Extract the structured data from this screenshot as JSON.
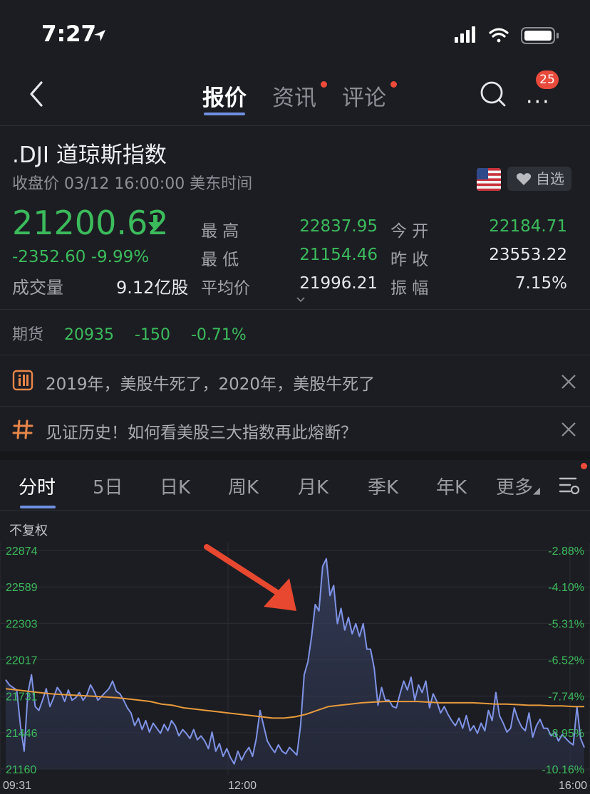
{
  "status_bar": {
    "time": "7:27"
  },
  "nav": {
    "tabs": [
      {
        "label": "报价",
        "active": true
      },
      {
        "label": "资讯",
        "has_dot": true
      },
      {
        "label": "评论",
        "has_dot": true
      }
    ],
    "notification_count": "25",
    "back_icon": "chevron-left-icon",
    "search_icon": "search-icon",
    "more_icon": "more-icon"
  },
  "stock": {
    "title": ".DJI  道琼斯指数",
    "subtitle": "收盘价 03/12 16:00:00 美东时间",
    "watch_label": "自选",
    "price": "21200.62",
    "change": "-2352.60  -9.99%",
    "volume_label": "成交量",
    "volume_value": "9.12亿股",
    "stats": [
      {
        "label": "最  高",
        "value": "22837.95",
        "color": "#3bbb5c"
      },
      {
        "label": "最  低",
        "value": "21154.46",
        "color": "#3bbb5c"
      },
      {
        "label": "平均价",
        "value": "21996.21",
        "color": "#e6e7eb"
      },
      {
        "label": "今  开",
        "value": "22184.71",
        "color": "#3bbb5c"
      },
      {
        "label": "昨  收",
        "value": "23553.22",
        "color": "#e6e7eb"
      },
      {
        "label": "振  幅",
        "value": "7.15%",
        "color": "#e6e7eb"
      }
    ]
  },
  "futures": {
    "label": "期货",
    "price": "20935",
    "change": "-150",
    "percent": "-0.71%"
  },
  "news": [
    {
      "icon": "info-icon",
      "text": "2019年，美股牛死了，2020年，美股牛死了"
    },
    {
      "icon": "hashtag-icon",
      "text": "见证历史！如何看美股三大指数再此熔断？"
    }
  ],
  "period_tabs": [
    "分时",
    "5日",
    "日K",
    "周K",
    "月K",
    "季K",
    "年K",
    "更多"
  ],
  "chart_labels": {
    "adjust": "不复权"
  },
  "chart_data": {
    "type": "line",
    "y_ticks": [
      "22874",
      "22589",
      "22303",
      "22017",
      "21731",
      "21446",
      "21160"
    ],
    "pct_ticks": [
      "-2.88%",
      "-4.10%",
      "-5.31%",
      "-6.52%",
      "-7.74%",
      "-8.95%",
      "-10.16%"
    ],
    "x_ticks": [
      "09:31",
      "12:00",
      "16:00"
    ],
    "ylim": [
      21160,
      22874
    ],
    "series": [
      {
        "values": [
          21860,
          21820,
          21800,
          21780,
          21500,
          21300,
          21750,
          21900,
          21650,
          21620,
          21700,
          21790,
          21650,
          21720,
          21800,
          21760,
          21690,
          21780,
          21700,
          21720,
          21760,
          21700,
          21740,
          21820,
          21770,
          21700,
          21730,
          21760,
          21790,
          21850,
          21770,
          21750,
          21700,
          21640,
          21600,
          21500,
          21560,
          21470,
          21540,
          21450,
          21520,
          21480,
          21440,
          21510,
          21460,
          21540,
          21500,
          21420,
          21470,
          21440,
          21400,
          21470,
          21390,
          21420,
          21380,
          21320,
          21450,
          21300,
          21360,
          21260,
          21320,
          21250,
          21200,
          21300,
          21230,
          21290,
          21330,
          21260,
          21400,
          21620,
          21500,
          21380,
          21330,
          21290,
          21350,
          21300,
          21280,
          21330,
          21300,
          21270,
          21500,
          21900,
          22000,
          22200,
          22450,
          22400,
          22750,
          22810,
          22520,
          22600,
          22300,
          22420,
          22250,
          22350,
          22220,
          22300,
          22200,
          22300,
          22100,
          22100,
          21950,
          21660,
          21800,
          21700,
          21700,
          21650,
          21640,
          21750,
          21850,
          21780,
          21880,
          21700,
          21820,
          21760,
          21850,
          21640,
          21750,
          21690,
          21600,
          21650,
          21590,
          21540,
          21500,
          21560,
          21480,
          21580,
          21460,
          21500,
          21440,
          21520,
          21460,
          21620,
          21540,
          21760,
          21580,
          21520,
          21450,
          21480,
          21640,
          21550,
          21490,
          21460,
          21600,
          21410,
          21500,
          21550,
          21480,
          21480,
          21420,
          21450,
          21380,
          21430,
          21400,
          21370,
          21350,
          21650,
          21400,
          21330
        ],
        "color": "#7f93e6"
      },
      {
        "values": [
          21790,
          21780,
          21770,
          21760,
          21750,
          21745,
          21740,
          21735,
          21730,
          21725,
          21720,
          21710,
          21700,
          21690,
          21670,
          21660,
          21640,
          21630,
          21620,
          21610,
          21600,
          21590,
          21580,
          21570,
          21560,
          21560,
          21570,
          21590,
          21620,
          21650,
          21660,
          21670,
          21680,
          21685,
          21690,
          21690,
          21690,
          21690,
          21685,
          21680,
          21680,
          21680,
          21680,
          21675,
          21670,
          21670,
          21665,
          21660,
          21660,
          21655,
          21655,
          21650,
          21650
        ],
        "color": "#e79a3c"
      }
    ]
  }
}
